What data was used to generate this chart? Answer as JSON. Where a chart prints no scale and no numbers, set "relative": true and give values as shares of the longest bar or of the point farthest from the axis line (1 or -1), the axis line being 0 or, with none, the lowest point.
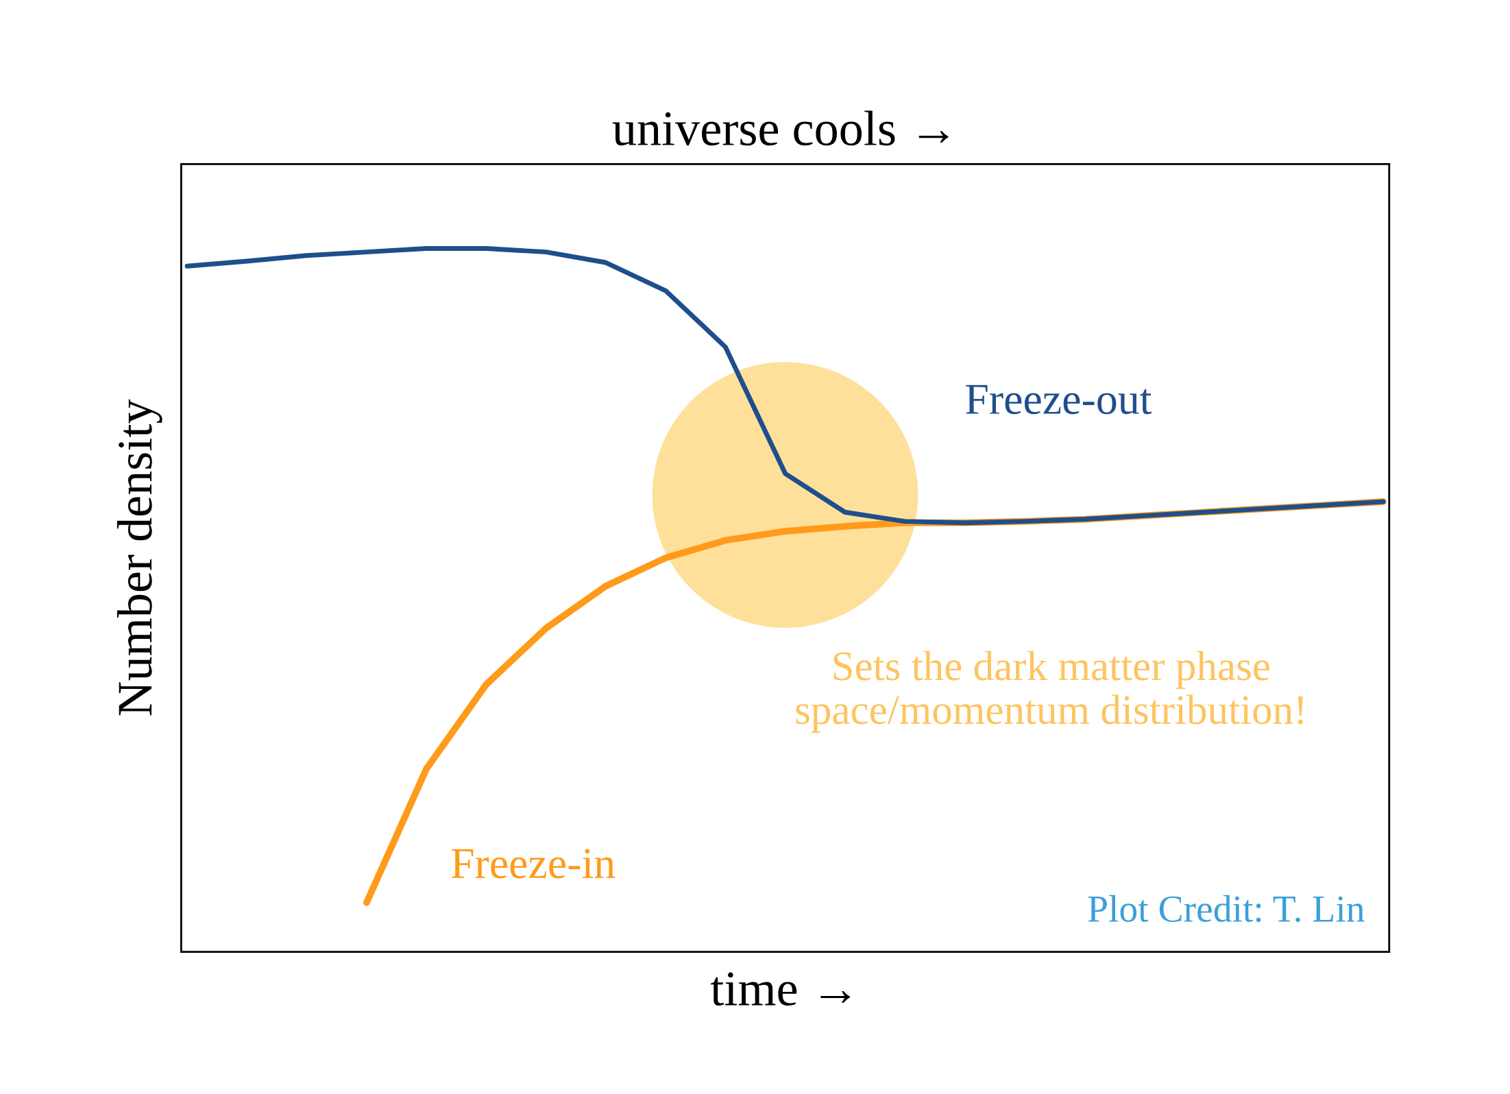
{
  "chart_data": {
    "type": "line",
    "relative": true,
    "xlabel": "time →",
    "x2label": "universe cools →",
    "ylabel": "Number density",
    "categories": [
      null,
      null,
      null,
      null,
      null,
      null,
      null,
      null,
      null,
      null,
      null,
      null,
      null,
      null,
      null,
      null,
      null,
      null,
      null,
      null,
      null
    ],
    "series": [
      {
        "name": "Freeze-out",
        "color": "#1f4e8c",
        "values": [
          0.975,
          0.982,
          0.99,
          0.995,
          1.0,
          1.0,
          0.995,
          0.98,
          0.94,
          0.86,
          0.68,
          0.625,
          0.612,
          0.61,
          0.612,
          0.615,
          0.62,
          0.625,
          0.63,
          0.635,
          0.64
        ]
      },
      {
        "name": "Freeze-in",
        "color": "#ff9a1a",
        "values": [
          null,
          null,
          null,
          0.07,
          0.26,
          0.38,
          0.46,
          0.52,
          0.56,
          0.585,
          0.598,
          0.605,
          0.61,
          0.61,
          0.612,
          0.615,
          0.62,
          0.625,
          0.63,
          0.635,
          0.64
        ]
      }
    ],
    "annotations": [
      "Sets the dark matter phase space/momentum distribution!",
      "Plot Credit: T. Lin"
    ],
    "legend": false
  }
}
